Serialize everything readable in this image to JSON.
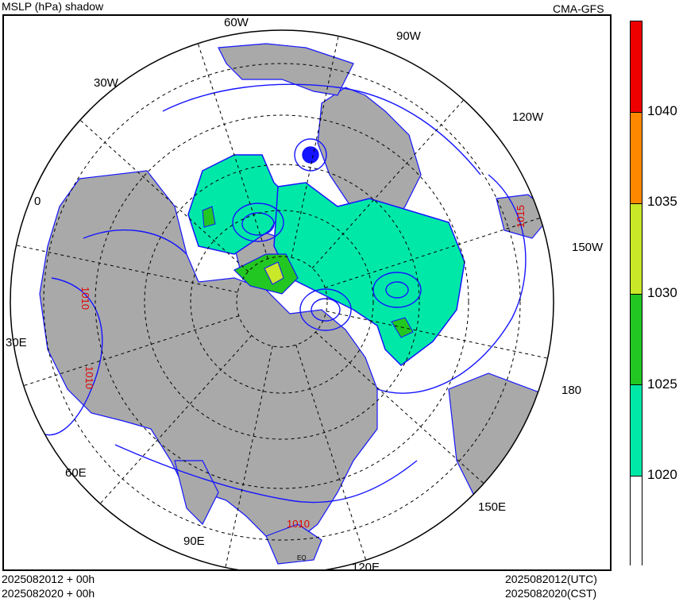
{
  "header": {
    "title": "MSLP (hPa) shadow",
    "model": "CMA-GFS"
  },
  "footer": {
    "init_line1": "2025082012 + 00h",
    "init_line2": "2025082020 + 00h",
    "valid_utc": "2025082012(UTC)",
    "valid_cst": "2025082020(CST)"
  },
  "map": {
    "projection": "north-polar-stereographic",
    "longitude_labels": [
      "60W",
      "90W",
      "30W",
      "120W",
      "0",
      "150W",
      "30E",
      "180",
      "60E",
      "150E",
      "90E",
      "120E"
    ],
    "equator_label": "EQ",
    "contour_labels": [
      "1010",
      "1015",
      "1010",
      "1010"
    ],
    "colors": {
      "land": "#a9a9a9",
      "contour": "#1515ff",
      "grid": "#000000",
      "label": "#e00000"
    }
  },
  "colorbar": {
    "levels": [
      "1040",
      "1035",
      "1030",
      "1025",
      "1020"
    ],
    "bins": [
      {
        "range": "1040+",
        "color": "#ee0000"
      },
      {
        "range": "1035-1040",
        "color": "#ff8800"
      },
      {
        "range": "1030-1035",
        "color": "#c8e828"
      },
      {
        "range": "1025-1030",
        "color": "#22c722"
      },
      {
        "range": "1020-1025",
        "color": "#00e8a8"
      },
      {
        "range": "<1020",
        "color": "#ffffff"
      }
    ]
  }
}
